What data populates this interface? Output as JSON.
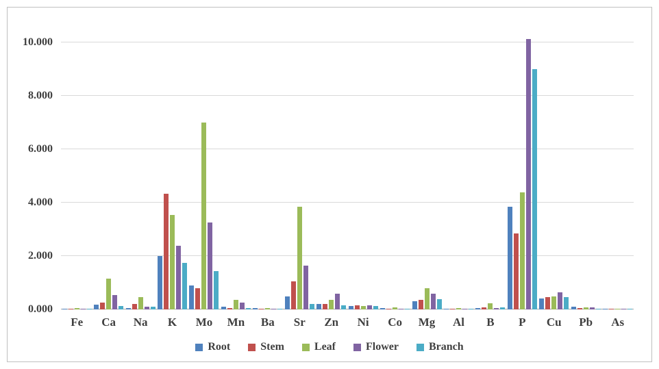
{
  "chart_data": {
    "type": "bar",
    "title": "",
    "xlabel": "",
    "ylabel": "",
    "grid": true,
    "legend_position": "bottom",
    "ylim": [
      0,
      10.5
    ],
    "yticks": [
      "0.000",
      "2.000",
      "4.000",
      "6.000",
      "8.000",
      "10.000"
    ],
    "ytick_values": [
      0,
      2,
      4,
      6,
      8,
      10
    ],
    "categories": [
      "Fe",
      "Ca",
      "Na",
      "K",
      "Mo",
      "Mn",
      "Ba",
      "Sr",
      "Zn",
      "Ni",
      "Co",
      "Mg",
      "Al",
      "B",
      "P",
      "Cu",
      "Pb",
      "As"
    ],
    "series": [
      {
        "name": "Root",
        "color": "#4F81BD",
        "values": [
          0.03,
          0.18,
          0.05,
          2.0,
          0.9,
          0.1,
          0.05,
          0.5,
          0.2,
          0.12,
          0.05,
          0.3,
          0.02,
          0.05,
          3.85,
          0.4,
          0.1,
          0.02
        ]
      },
      {
        "name": "Stem",
        "color": "#C0504D",
        "values": [
          0.03,
          0.25,
          0.2,
          4.35,
          0.8,
          0.05,
          0.03,
          1.05,
          0.2,
          0.15,
          0.03,
          0.35,
          0.03,
          0.08,
          2.85,
          0.45,
          0.05,
          0.03
        ]
      },
      {
        "name": "Leaf",
        "color": "#9BBB59",
        "values": [
          0.05,
          1.15,
          0.45,
          3.55,
          7.0,
          0.35,
          0.05,
          3.85,
          0.35,
          0.12,
          0.08,
          0.8,
          0.04,
          0.22,
          4.4,
          0.5,
          0.08,
          0.02
        ]
      },
      {
        "name": "Flower",
        "color": "#8064A2",
        "values": [
          0.03,
          0.55,
          0.1,
          2.4,
          3.25,
          0.25,
          0.03,
          1.65,
          0.6,
          0.15,
          0.02,
          0.6,
          0.03,
          0.05,
          10.15,
          0.65,
          0.08,
          0.03
        ]
      },
      {
        "name": "Branch",
        "color": "#4BACC6",
        "values": [
          0.02,
          0.12,
          0.1,
          1.75,
          1.45,
          0.05,
          0.02,
          0.2,
          0.15,
          0.12,
          0.02,
          0.38,
          0.02,
          0.08,
          9.0,
          0.45,
          0.03,
          0.02
        ]
      }
    ]
  }
}
